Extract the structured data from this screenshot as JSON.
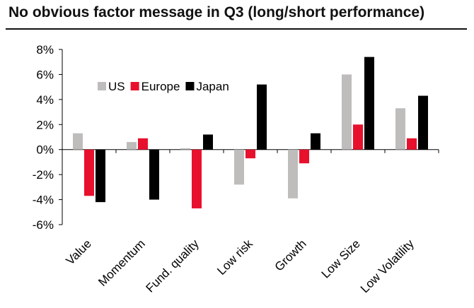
{
  "chart_data": {
    "type": "bar",
    "title": "No obvious factor message in Q3 (long/short performance)",
    "xlabel": "",
    "ylabel": "",
    "ylim": [
      -6,
      8
    ],
    "yticks": [
      -6,
      -4,
      -2,
      0,
      2,
      4,
      6,
      8
    ],
    "ytick_labels": [
      "-6%",
      "-4%",
      "-2%",
      "0%",
      "2%",
      "4%",
      "6%",
      "8%"
    ],
    "categories": [
      "Value",
      "Momentum",
      "Fund. quality",
      "Low risk",
      "Growth",
      "Low Size",
      "Low Volatility"
    ],
    "series": [
      {
        "name": "US",
        "color": "#bfbcbc",
        "values": [
          1.3,
          0.6,
          0.1,
          -2.8,
          -3.9,
          6.0,
          3.3
        ]
      },
      {
        "name": "Europe",
        "color": "#e8112d",
        "values": [
          -3.7,
          0.9,
          -4.7,
          -0.7,
          -1.1,
          2.0,
          0.9
        ]
      },
      {
        "name": "Japan",
        "color": "#000000",
        "values": [
          -4.2,
          -4.0,
          1.2,
          5.2,
          1.3,
          7.4,
          4.3
        ]
      }
    ],
    "legend": "top-left",
    "grid": false
  }
}
